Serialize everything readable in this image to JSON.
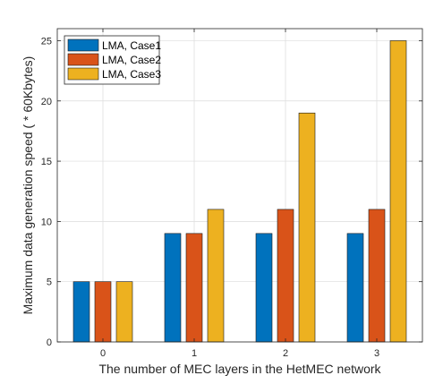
{
  "chart_data": {
    "type": "bar",
    "categories": [
      "0",
      "1",
      "2",
      "3"
    ],
    "series": [
      {
        "name": "LMA, Case1",
        "values": [
          5,
          9,
          9,
          9
        ],
        "color": "#0072BD"
      },
      {
        "name": "LMA, Case2",
        "values": [
          5,
          9,
          11,
          11
        ],
        "color": "#D95319"
      },
      {
        "name": "LMA, Case3",
        "values": [
          5,
          11,
          19,
          25
        ],
        "color": "#EDB120"
      }
    ],
    "title": "",
    "xlabel": "The number of MEC layers in the HetMEC network",
    "ylabel": "Maximum data generation speed ( * 60Kbytes)",
    "ylim": [
      0,
      26
    ],
    "yticks": [
      0,
      5,
      10,
      15,
      20,
      25
    ],
    "grid": true,
    "legend_position": "top-left"
  }
}
